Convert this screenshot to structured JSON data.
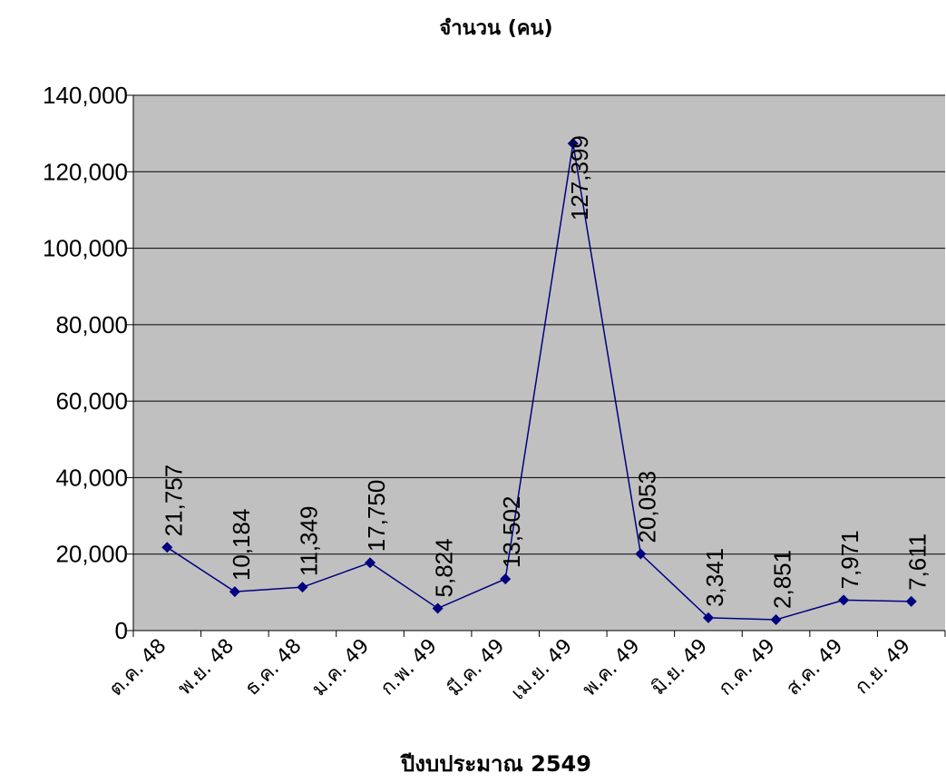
{
  "chart_data": {
    "type": "line",
    "title": "จำนวน (คน)",
    "x_label": "ปีงบประมาณ 2549",
    "categories": [
      "ต.ค. 48",
      "พ.ย. 48",
      "ธ.ค. 48",
      "ม.ค. 49",
      "ก.พ. 49",
      "มี.ค. 49",
      "เม.ย. 49",
      "พ.ค. 49",
      "มิ.ย. 49",
      "ก.ค. 49",
      "ส.ค. 49",
      "ก.ย. 49"
    ],
    "series": [
      {
        "color": "#000080",
        "values": [
          21757,
          10184,
          11349,
          17750,
          5824,
          13502,
          127399,
          20053,
          3341,
          2851,
          7971,
          7611
        ],
        "value_labels": [
          "21,757",
          "10,184",
          "11,349",
          "17,750",
          "5,824",
          "13,502",
          "127,399",
          "20,053",
          "3,341",
          "2,851",
          "7,971",
          "7,611"
        ]
      }
    ],
    "ylim": [
      0,
      140000
    ],
    "yticks": [
      0,
      {
        "value": 20000,
        "label": "20,000"
      },
      {
        "value": 40000,
        "label": "40,000"
      },
      {
        "value": 60000,
        "label": "60,000"
      },
      {
        "value": 80000,
        "label": "80,000"
      },
      {
        "value": 100000,
        "label": "100,000"
      },
      {
        "value": 120000,
        "label": "120,000"
      },
      {
        "value": 140000,
        "label": "140,000"
      }
    ],
    "grid": true,
    "plot_background": "#c0c0c0"
  }
}
